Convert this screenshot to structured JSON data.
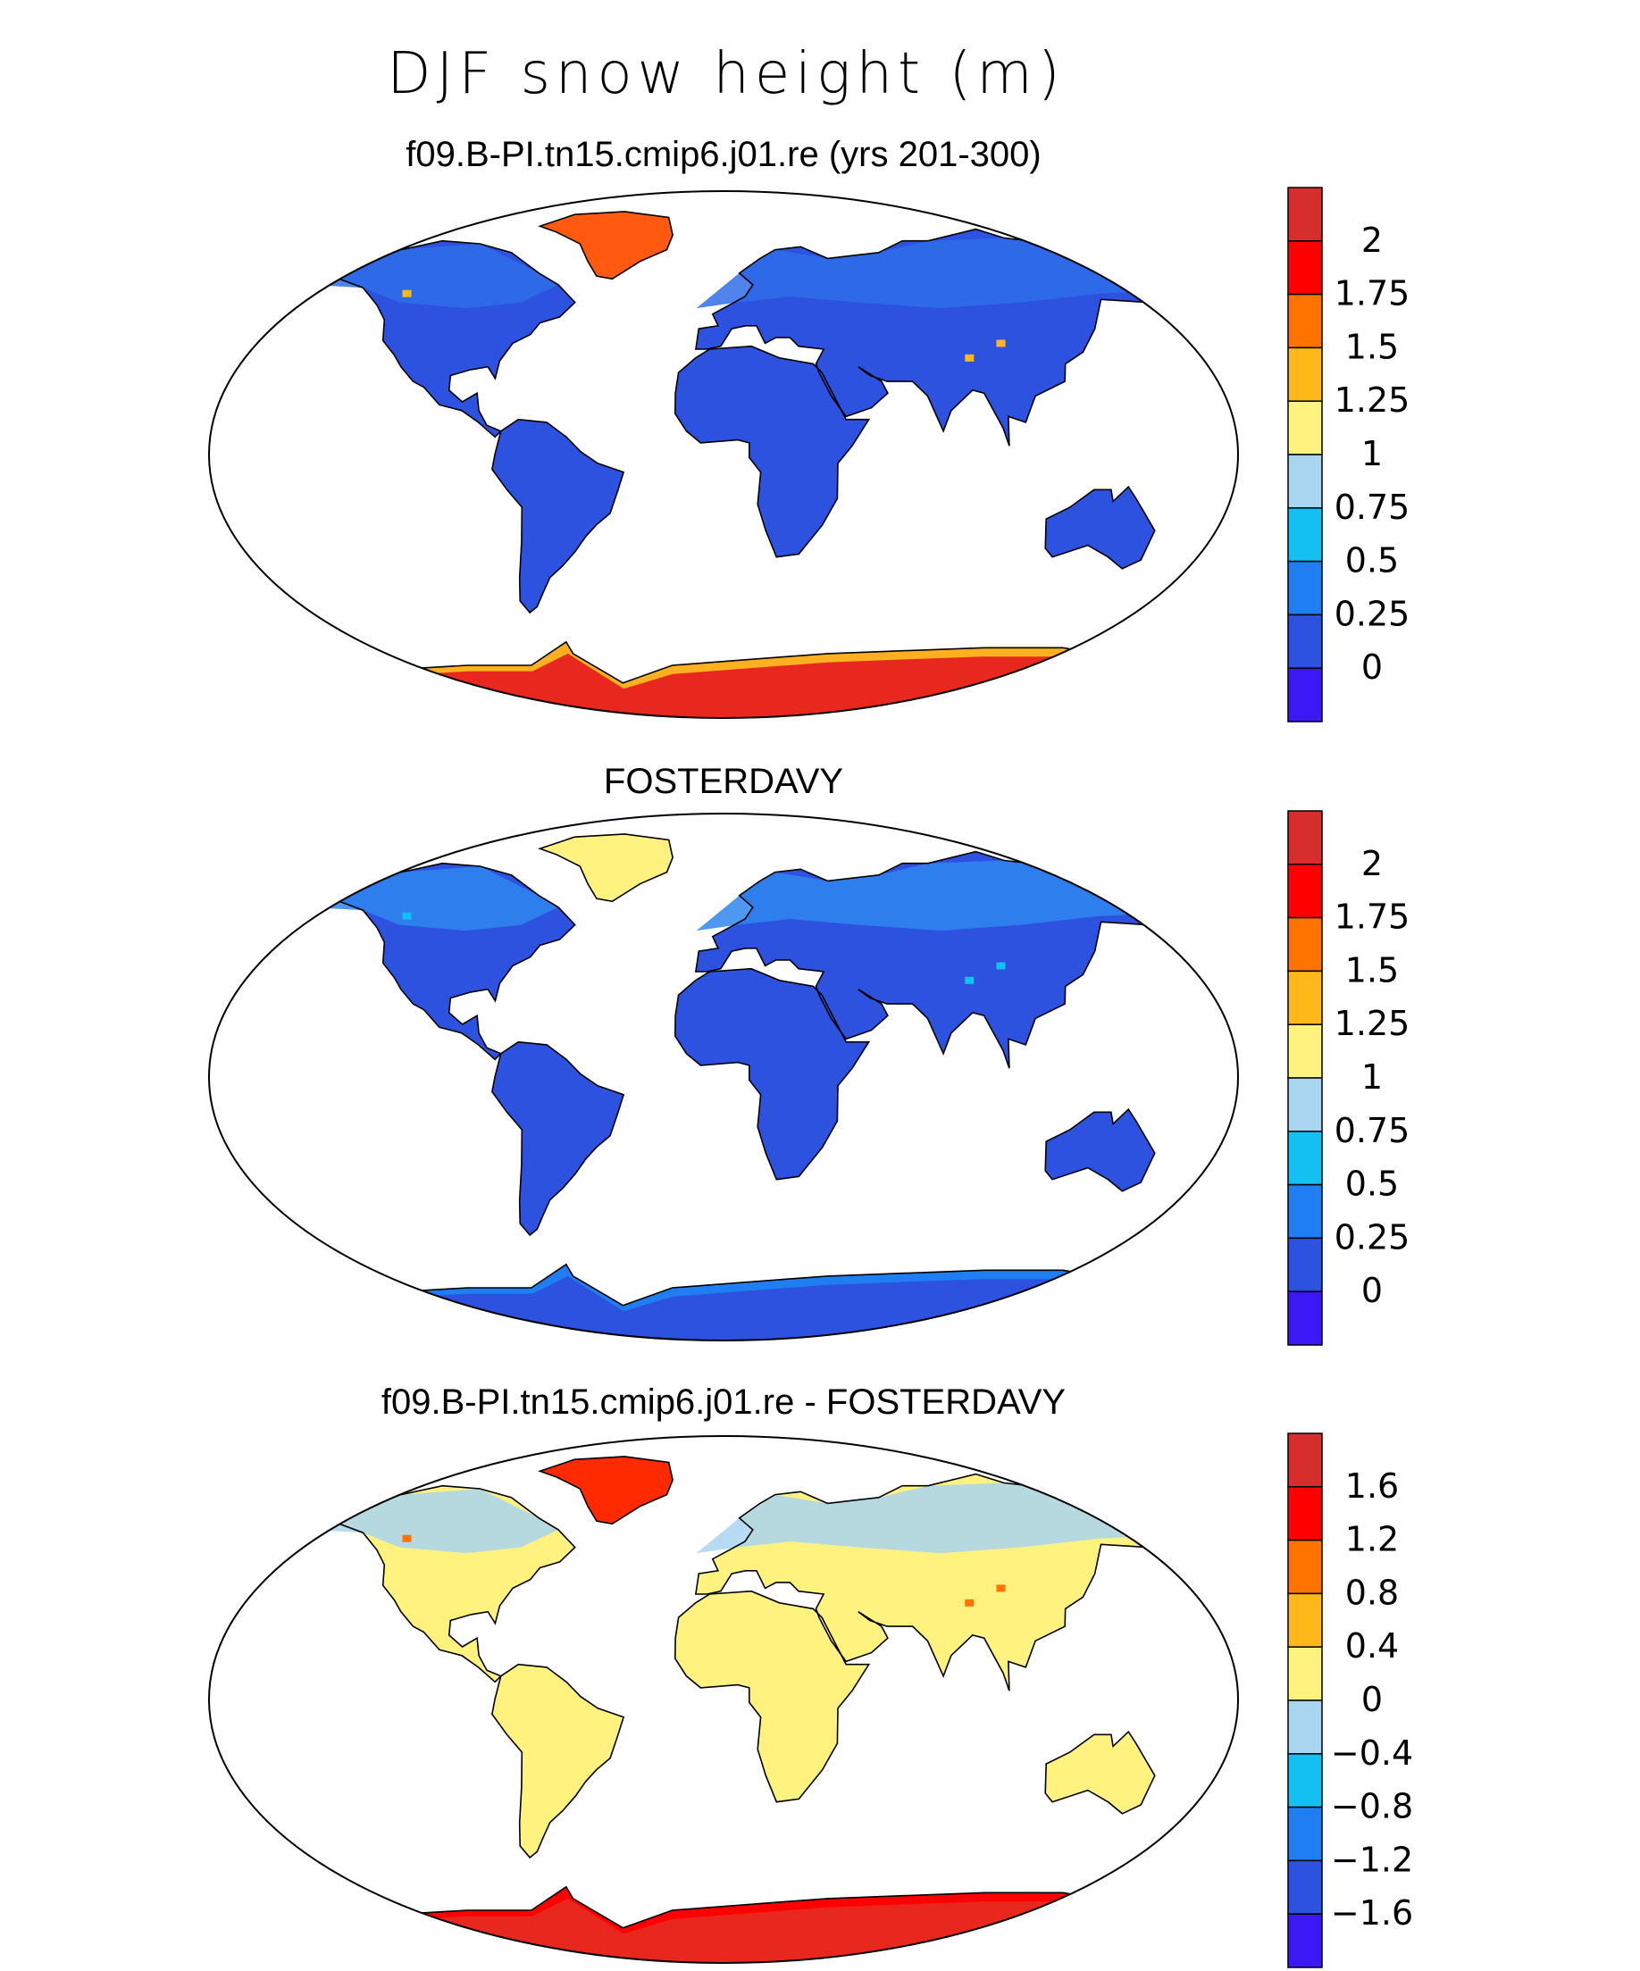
{
  "figure": {
    "title": "DJF snow height (m)"
  },
  "panels": [
    {
      "title": "f09.B-PI.tn15.cmip6.j01.re (yrs 201-300)",
      "colorbar": {
        "labels": [
          "2",
          "1.75",
          "1.5",
          "1.25",
          "1",
          "0.75",
          "0.5",
          "0.25",
          "0"
        ],
        "colors": [
          "#d62d2d",
          "#ff0000",
          "#ff7300",
          "#ffb81a",
          "#fff27f",
          "#a9d5f0",
          "#14bff2",
          "#1f7ff2",
          "#2d52e0",
          "#3b18f5"
        ]
      },
      "land": {
        "default": "#2d52e0",
        "north": "#2f6ee8",
        "greenland": "#ff5a10",
        "antarctica": "#e8281e",
        "antarctica_edge": "#ffb020",
        "highlight": "#ffb81a"
      }
    },
    {
      "title": "FOSTERDAVY",
      "colorbar": {
        "labels": [
          "2",
          "1.75",
          "1.5",
          "1.25",
          "1",
          "0.75",
          "0.5",
          "0.25",
          "0"
        ],
        "colors": [
          "#d62d2d",
          "#ff0000",
          "#ff7300",
          "#ffb81a",
          "#fff27f",
          "#a9d5f0",
          "#14bff2",
          "#1f7ff2",
          "#2d52e0",
          "#3b18f5"
        ]
      },
      "land": {
        "default": "#2d52e0",
        "north": "#2f86f0",
        "greenland": "#fff27f",
        "antarctica": "#2d52e0",
        "antarctica_edge": "#1f7ff2",
        "highlight": "#14bff2"
      }
    },
    {
      "title": "f09.B-PI.tn15.cmip6.j01.re - FOSTERDAVY",
      "colorbar": {
        "labels": [
          "1.6",
          "1.2",
          "0.8",
          "0.4",
          "0",
          "−0.4",
          "−0.8",
          "−1.2",
          "−1.6"
        ],
        "colors": [
          "#d62d2d",
          "#ff0000",
          "#ff7300",
          "#ffb81a",
          "#fff27f",
          "#a9d5f0",
          "#14bff2",
          "#1f7ff2",
          "#2d52e0",
          "#3b18f5"
        ]
      },
      "land": {
        "default": "#fff27f",
        "north": "#a9d5f0",
        "greenland": "#ff2a00",
        "antarctica": "#e8281e",
        "antarctica_edge": "#ff0000",
        "highlight": "#ff7300"
      }
    }
  ]
}
